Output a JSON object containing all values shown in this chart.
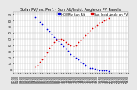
{
  "title": "Solar PV/Inv. Perf. - Sun Alt/Incid. Angle on PV Panels",
  "legend_labels": [
    "HOURly Sun Alt",
    "Sun Incid Angle on PV"
  ],
  "legend_colors": [
    "#0000dd",
    "#dd0000"
  ],
  "background_color": "#e8e8e8",
  "plot_bg_color": "#ffffff",
  "grid_color": "#bbbbbb",
  "xlim": [
    0,
    24
  ],
  "ylim": [
    -5,
    95
  ],
  "ytick_vals": [
    0,
    10,
    20,
    30,
    40,
    50,
    60,
    70,
    80,
    90
  ],
  "ytick_labels": [
    "0",
    "10",
    "20",
    "30",
    "40",
    "50",
    "60",
    "70",
    "80",
    "90"
  ],
  "x_sun_alt": [
    4.5,
    5.0,
    5.5,
    6.0,
    6.5,
    7.0,
    7.5,
    8.0,
    8.5,
    9.0,
    9.5,
    10.0,
    10.5,
    11.0,
    11.5,
    12.0,
    12.5,
    13.0,
    13.5,
    14.0,
    14.5,
    15.0,
    15.5,
    16.0,
    16.5,
    17.0,
    17.5,
    18.0,
    18.5,
    19.0,
    19.5,
    20.0
  ],
  "y_sun_alt": [
    85,
    82,
    78,
    74,
    70,
    66,
    62,
    58,
    54,
    50,
    46,
    42,
    38,
    34,
    30,
    26,
    22,
    19,
    16,
    13,
    10,
    7,
    5,
    3,
    2,
    1,
    0,
    -1,
    -1,
    -2,
    -2,
    -3
  ],
  "x_sun_incid": [
    4.5,
    5.0,
    5.5,
    6.0,
    6.5,
    7.0,
    7.5,
    8.0,
    8.5,
    9.0,
    9.5,
    10.0,
    10.5,
    11.0,
    11.5,
    12.0,
    12.5,
    13.0,
    13.5,
    14.0,
    14.5,
    15.0,
    15.5,
    16.0,
    16.5,
    17.0,
    17.5,
    18.0,
    18.5,
    19.0,
    19.5,
    20.0
  ],
  "y_sun_incid": [
    5,
    8,
    12,
    16,
    22,
    28,
    35,
    40,
    45,
    48,
    50,
    50,
    48,
    45,
    42,
    40,
    38,
    40,
    44,
    48,
    52,
    56,
    60,
    64,
    67,
    70,
    73,
    76,
    78,
    80,
    82,
    84
  ],
  "dot_size": 1.5,
  "title_fontsize": 3.5,
  "tick_fontsize": 2.8,
  "legend_fontsize": 2.8
}
